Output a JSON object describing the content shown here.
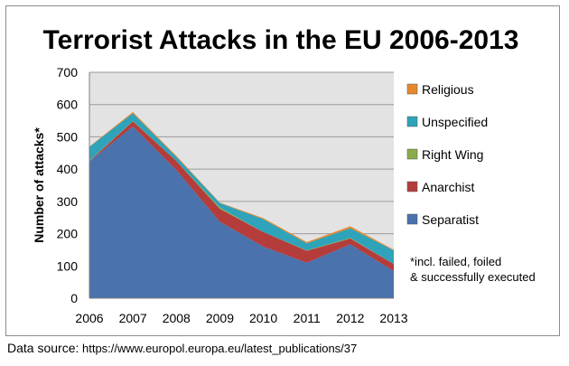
{
  "chart_data": {
    "type": "area",
    "stacked": true,
    "title": "Terrorist Attacks in the EU 2006-2013",
    "xlabel": "",
    "ylabel": "Number of attacks*",
    "x": [
      "2006",
      "2007",
      "2008",
      "2009",
      "2010",
      "2011",
      "2012",
      "2013"
    ],
    "ylim": [
      0,
      700
    ],
    "yticks": [
      0,
      100,
      200,
      300,
      400,
      500,
      600,
      700
    ],
    "grid": true,
    "legend_position": "right",
    "series": [
      {
        "name": "Separatist",
        "color": "#4a72ad",
        "values": [
          424,
          532,
          397,
          237,
          160,
          110,
          167,
          84
        ]
      },
      {
        "name": "Anarchist",
        "color": "#b43d3b",
        "values": [
          1,
          16,
          28,
          40,
          45,
          37,
          18,
          22
        ]
      },
      {
        "name": "Right Wing",
        "color": "#8aac4d",
        "values": [
          1,
          1,
          0,
          4,
          0,
          1,
          2,
          0
        ]
      },
      {
        "name": "Unspecified",
        "color": "#2ea3b9",
        "values": [
          43,
          24,
          13,
          14,
          40,
          22,
          30,
          42
        ]
      },
      {
        "name": "Religious",
        "color": "#e6892e",
        "values": [
          1,
          4,
          3,
          1,
          3,
          4,
          6,
          2
        ]
      }
    ],
    "annotation": [
      "*incl. failed, foiled",
      "& successfully executed"
    ]
  },
  "source": {
    "label": "Data source:",
    "url": "https://www.europol.europa.eu/latest_publications/37"
  }
}
